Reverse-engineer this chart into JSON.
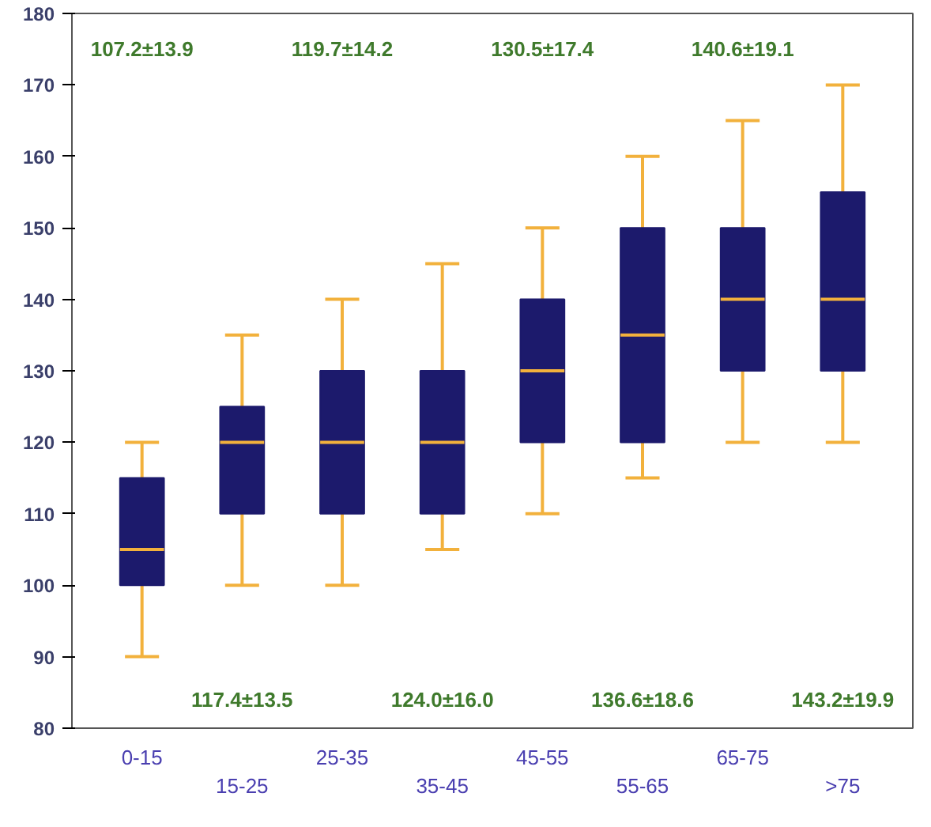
{
  "chart_data": {
    "type": "box",
    "categories": [
      "0-15",
      "15-25",
      "25-35",
      "35-45",
      "45-55",
      "55-65",
      "65-75",
      ">75"
    ],
    "boxes": [
      {
        "low": 90,
        "q1": 100,
        "median": 105,
        "q3": 115,
        "high": 120
      },
      {
        "low": 100,
        "q1": 110,
        "median": 120,
        "q3": 125,
        "high": 135
      },
      {
        "low": 100,
        "q1": 110,
        "median": 120,
        "q3": 130,
        "high": 140
      },
      {
        "low": 105,
        "q1": 110,
        "median": 120,
        "q3": 130,
        "high": 145
      },
      {
        "low": 110,
        "q1": 120,
        "median": 130,
        "q3": 140,
        "high": 150
      },
      {
        "low": 115,
        "q1": 120,
        "median": 135,
        "q3": 150,
        "high": 160
      },
      {
        "low": 120,
        "q1": 130,
        "median": 140,
        "q3": 150,
        "high": 165
      },
      {
        "low": 120,
        "q1": 130,
        "median": 140,
        "q3": 155,
        "high": 170
      }
    ],
    "color": "#1c1a6c",
    "ylim": [
      80,
      180
    ],
    "yticks": [
      80,
      90,
      100,
      110,
      120,
      130,
      140,
      150,
      160,
      170,
      180
    ],
    "grid": false,
    "annotations": [
      "107.2±13.9",
      "117.4±13.5",
      "119.7±14.2",
      "124.0±16.0",
      "130.5±17.4",
      "136.6±18.6",
      "140.6±19.1",
      "143.2±19.9"
    ]
  }
}
